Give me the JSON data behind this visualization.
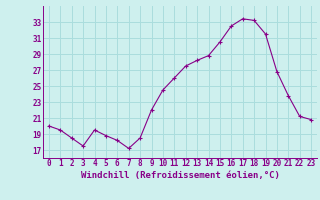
{
  "x": [
    0,
    1,
    2,
    3,
    4,
    5,
    6,
    7,
    8,
    9,
    10,
    11,
    12,
    13,
    14,
    15,
    16,
    17,
    18,
    19,
    20,
    21,
    22,
    23
  ],
  "y": [
    20.0,
    19.5,
    18.5,
    17.5,
    19.5,
    18.8,
    18.2,
    17.2,
    18.5,
    22.0,
    24.5,
    26.0,
    27.5,
    28.2,
    28.8,
    30.5,
    32.5,
    33.4,
    33.2,
    31.5,
    26.8,
    23.8,
    21.2,
    20.8
  ],
  "line_color": "#880088",
  "marker": "+",
  "bg_color": "#cef0ee",
  "grid_color": "#aadddd",
  "xlabel": "Windchill (Refroidissement éolien,°C)",
  "xlabel_fontsize": 6.5,
  "tick_fontsize": 5.5,
  "ylim": [
    16,
    35
  ],
  "yticks": [
    17,
    19,
    21,
    23,
    25,
    27,
    29,
    31,
    33
  ],
  "xticks": [
    0,
    1,
    2,
    3,
    4,
    5,
    6,
    7,
    8,
    9,
    10,
    11,
    12,
    13,
    14,
    15,
    16,
    17,
    18,
    19,
    20,
    21,
    22,
    23
  ]
}
